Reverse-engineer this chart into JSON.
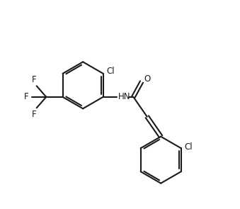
{
  "bg_color": "#ffffff",
  "line_color": "#1a1a1a",
  "line_width": 1.5,
  "font_size": 8.5,
  "fig_width": 3.39,
  "fig_height": 2.95,
  "dpi": 100,
  "xlim": [
    0,
    10
  ],
  "ylim": [
    0,
    8.7
  ]
}
